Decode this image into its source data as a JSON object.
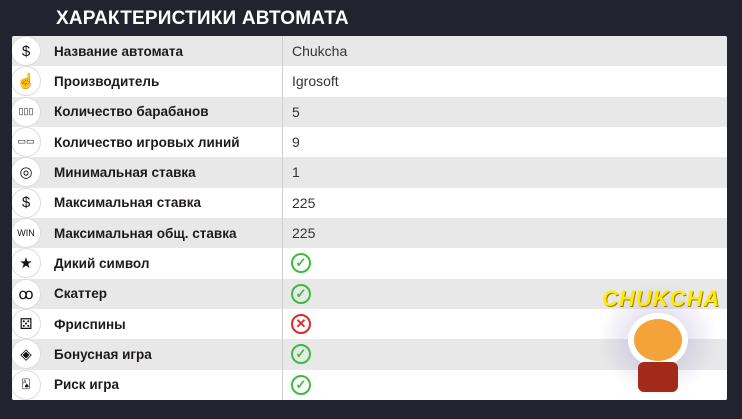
{
  "title": "ХАРАКТЕРИСТИКИ АВТОМАТА",
  "rows": [
    {
      "icon": "dollar-badge-icon",
      "glyph": "$",
      "label": "Название автомата",
      "value": "Chukcha"
    },
    {
      "icon": "hand-pointer-icon",
      "glyph": "☝",
      "label": "Производитель",
      "value": "Igrosoft"
    },
    {
      "icon": "reels-icon",
      "glyph": "▯▯▯",
      "label": "Количество барабанов",
      "value": "5"
    },
    {
      "icon": "lines-icon",
      "glyph": "▭▭",
      "label": "Количество игровых линий",
      "value": "9"
    },
    {
      "icon": "chip-icon",
      "glyph": "◎",
      "label": "Минимальная ставка",
      "value": "1"
    },
    {
      "icon": "dollar-coin-icon",
      "glyph": "$",
      "label": "Максимальная ставка",
      "value": "225"
    },
    {
      "icon": "win-icon",
      "glyph": "WIN",
      "label": "Максимальная общ. ставка",
      "value": "225"
    },
    {
      "icon": "star-icon",
      "glyph": "★",
      "label": "Дикий символ",
      "status": "yes"
    },
    {
      "icon": "cherry-icon",
      "glyph": "ꝏ",
      "label": "Скаттер",
      "status": "yes"
    },
    {
      "icon": "dice-icon",
      "glyph": "⚄",
      "label": "Фриспины",
      "status": "no"
    },
    {
      "icon": "gem-icon",
      "glyph": "◈",
      "label": "Бонусная игра",
      "status": "yes"
    },
    {
      "icon": "cards-icon",
      "glyph": "🂡",
      "label": "Риск игра",
      "status": "yes"
    }
  ],
  "logo": {
    "text": "CHUKCHA"
  },
  "colors": {
    "yes": "#3dbb3d",
    "no": "#e02828",
    "background": "#23222f"
  }
}
